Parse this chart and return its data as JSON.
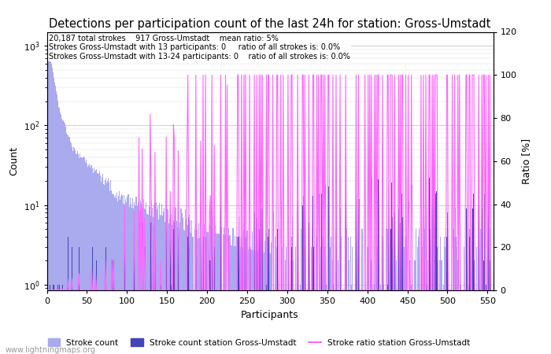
{
  "title": "Detections per participation count of the last 24h for station: Gross-Umstadt",
  "xlabel": "Participants",
  "ylabel_left": "Count",
  "ylabel_right": "Ratio [%]",
  "annotation_lines": [
    "20,187 total strokes    917 Gross-Umstadt    mean ratio: 5%",
    "Strokes Gross-Umstadt with 13 participants: 0     ratio of all strokes is: 0.0%",
    "Strokes Gross-Umstadt with 13-24 participants: 0    ratio of all strokes is: 0.0%"
  ],
  "legend_labels": [
    "Stroke count",
    "Stroke count station Gross-Umstadt",
    "Stroke ratio station Gross-Umstadt"
  ],
  "watermark": "www.lightningmaps.org",
  "xlim": [
    0,
    557
  ],
  "ylim_right": [
    0,
    120
  ],
  "right_ticks": [
    0,
    20,
    40,
    60,
    80,
    100,
    120
  ],
  "total_color": "#aaaaee",
  "station_color": "#4444bb",
  "ratio_color": "#ff66ff",
  "background_color": "#ffffff",
  "figsize": [
    7.0,
    4.5
  ],
  "dpi": 100
}
